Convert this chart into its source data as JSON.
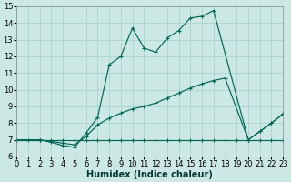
{
  "xlabel": "Humidex (Indice chaleur)",
  "xlim": [
    0,
    23
  ],
  "ylim": [
    6,
    15
  ],
  "xticks": [
    0,
    1,
    2,
    3,
    4,
    5,
    6,
    7,
    8,
    9,
    10,
    11,
    12,
    13,
    14,
    15,
    16,
    17,
    18,
    19,
    20,
    21,
    22,
    23
  ],
  "yticks": [
    6,
    7,
    8,
    9,
    10,
    11,
    12,
    13,
    14,
    15
  ],
  "bg_color": "#cce8e4",
  "grid_color": "#aad4ce",
  "line_color": "#006655",
  "line1_x": [
    0,
    1,
    2,
    3,
    4,
    5,
    6,
    7,
    8,
    9,
    10,
    11,
    12,
    13,
    14,
    15,
    16,
    17,
    18,
    19,
    20,
    21,
    22,
    23
  ],
  "line1_y": [
    7,
    7,
    7,
    7,
    7,
    7,
    7,
    7,
    7,
    7,
    7,
    7,
    7,
    7,
    7,
    7,
    7,
    7,
    7,
    7,
    7,
    7,
    7,
    7
  ],
  "line2_x": [
    0,
    2,
    3,
    4,
    5,
    6,
    7,
    8,
    9,
    10,
    11,
    12,
    13,
    14,
    15,
    16,
    17,
    18,
    20,
    21,
    22,
    23
  ],
  "line2_y": [
    7,
    7,
    6.9,
    6.8,
    6.7,
    7.2,
    7.9,
    8.3,
    8.6,
    8.85,
    9.0,
    9.2,
    9.5,
    9.8,
    10.1,
    10.35,
    10.55,
    10.7,
    7.0,
    7.5,
    8.0,
    8.55
  ],
  "line3_x": [
    0,
    2,
    3,
    4,
    5,
    6,
    7,
    8,
    9,
    10,
    11,
    12,
    13,
    14,
    15,
    16,
    17,
    20,
    21,
    22,
    23
  ],
  "line3_y": [
    7,
    7,
    6.85,
    6.65,
    6.55,
    7.4,
    8.35,
    11.5,
    12.0,
    13.7,
    12.5,
    12.25,
    13.1,
    13.55,
    14.3,
    14.4,
    14.75,
    7.0,
    7.5,
    8.0,
    8.55
  ],
  "xlabel_fontsize": 7,
  "tick_fontsize": 6
}
